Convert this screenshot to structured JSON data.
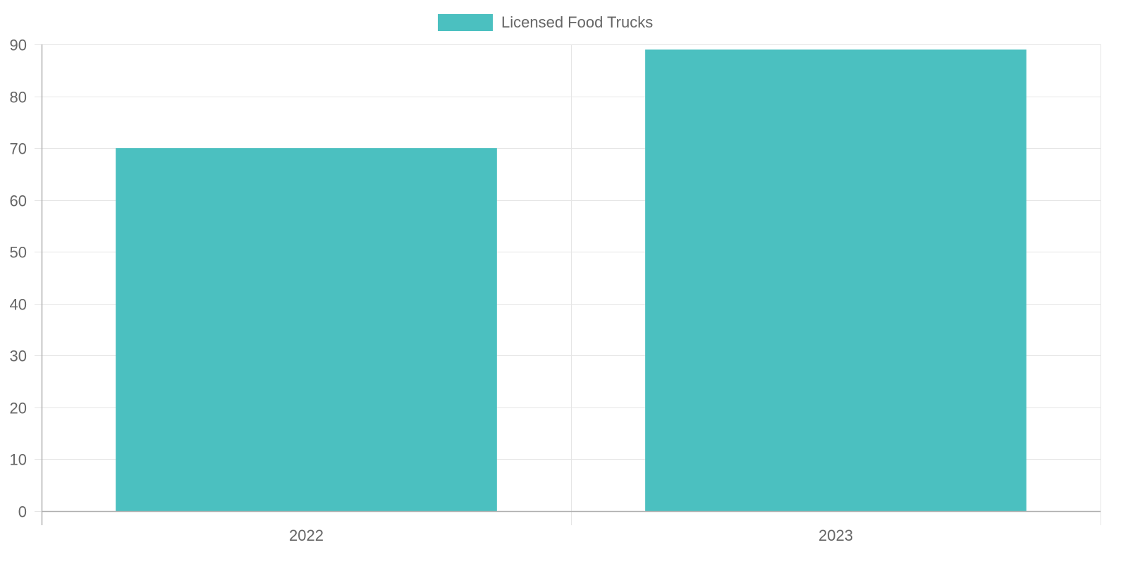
{
  "legend": {
    "label": "Licensed Food Trucks",
    "color": "#4bc0c0"
  },
  "chart_data": {
    "type": "bar",
    "title": "",
    "xlabel": "",
    "ylabel": "",
    "categories": [
      "2022",
      "2023"
    ],
    "series": [
      {
        "name": "Licensed Food Trucks",
        "values": [
          70,
          89
        ],
        "color": "#4bc0c0"
      }
    ],
    "ylim": [
      0,
      90
    ],
    "yticks": [
      0,
      10,
      20,
      30,
      40,
      50,
      60,
      70,
      80,
      90
    ],
    "grid": true,
    "legend_position": "top"
  }
}
